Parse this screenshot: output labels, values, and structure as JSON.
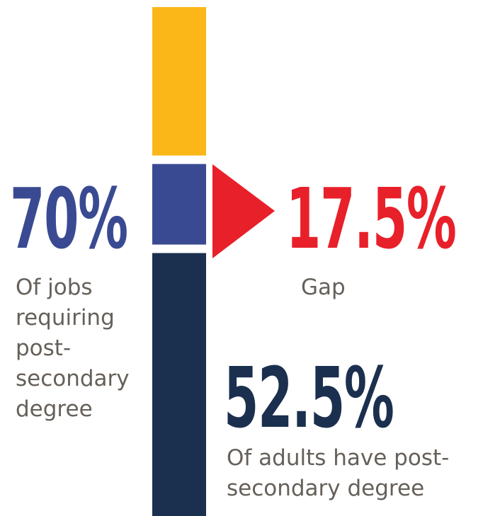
{
  "chart_data": {
    "type": "stacked-bar",
    "ylim": [
      0,
      100
    ],
    "color": "#fbb718",
    "series": [
      {
        "color": "#1b2f4e",
        "values": [
          52.5
        ],
        "value_labels": [
          "52.5%"
        ],
        "label": "Of adults have post-secondary degree"
      },
      {
        "color": "#3a4a92",
        "values": [
          17.5
        ],
        "value_labels": [
          "17.5%"
        ],
        "label": "Gap",
        "label_color": "#e8202a"
      }
    ],
    "total": {
      "values": [
        70
      ],
      "value_labels": [
        "70%"
      ],
      "label": "Of jobs requiring post-secondary degree",
      "color": "#3a4a92"
    }
  }
}
